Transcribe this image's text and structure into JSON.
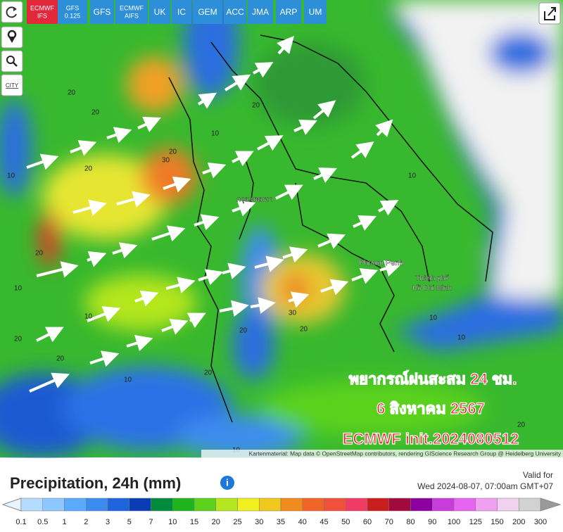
{
  "toolbar": {
    "models": [
      {
        "line1": "ECMWF",
        "line2": "IFS"
      },
      {
        "line1": "GFS",
        "line2": "0.125"
      },
      {
        "line1": "GFS"
      },
      {
        "line1": "ECMWF",
        "line2": "AIFS"
      },
      {
        "line1": "UK"
      },
      {
        "line1": "IC"
      },
      {
        "line1": "GEM"
      },
      {
        "line1": "ACC"
      },
      {
        "line1": "JMA"
      },
      {
        "line1": "ARP"
      },
      {
        "line1": "UM"
      }
    ],
    "city_button": "CITY"
  },
  "map": {
    "places": [
      "Phnom Penh",
      "Thành phố",
      "Hồ Chí Minh",
      "กรุงเทพมหา"
    ],
    "contour_labels": [
      "20",
      "20",
      "10",
      "20",
      "30",
      "20",
      "20",
      "10",
      "20",
      "10",
      "10",
      "20",
      "30",
      "20",
      "10",
      "10",
      "20",
      "20",
      "10",
      "20",
      "10",
      "10",
      "20"
    ],
    "overlay": [
      "พยากรณ์ฝนสะสม 24 ชม.",
      "6 สิงหาคม 2567",
      "ECMWF init.2024080512"
    ],
    "attribution": "Kartenmaterial: Map data © OpenStreetMap contributors, rendering GIScience Research Group @ Heidelberg University"
  },
  "legend": {
    "title": "Precipitation, 24h (mm)",
    "valid_label": "Valid for",
    "valid_time": "Wed 2024-08-07, 07:00am GMT+07",
    "labels": [
      "0.1",
      "0.5",
      "1",
      "2",
      "3",
      "5",
      "7",
      "10",
      "15",
      "20",
      "25",
      "30",
      "35",
      "40",
      "45",
      "50",
      "60",
      "70",
      "80",
      "90",
      "100",
      "125",
      "150",
      "200",
      "300"
    ],
    "colors": [
      "#b4dcff",
      "#8cc8ff",
      "#5aaaff",
      "#3c8cf0",
      "#1e64dc",
      "#0a3cb4",
      "#008c3c",
      "#1eb41e",
      "#5ad21e",
      "#b4e61e",
      "#f0f01e",
      "#f0c81e",
      "#f08c1e",
      "#f06428",
      "#f0503c",
      "#f03c64",
      "#c81e1e",
      "#a00a3c",
      "#8c00a0",
      "#c83cdc",
      "#e664f0",
      "#f0a0f0",
      "#f0d2f0",
      "#d2d2d2"
    ]
  }
}
